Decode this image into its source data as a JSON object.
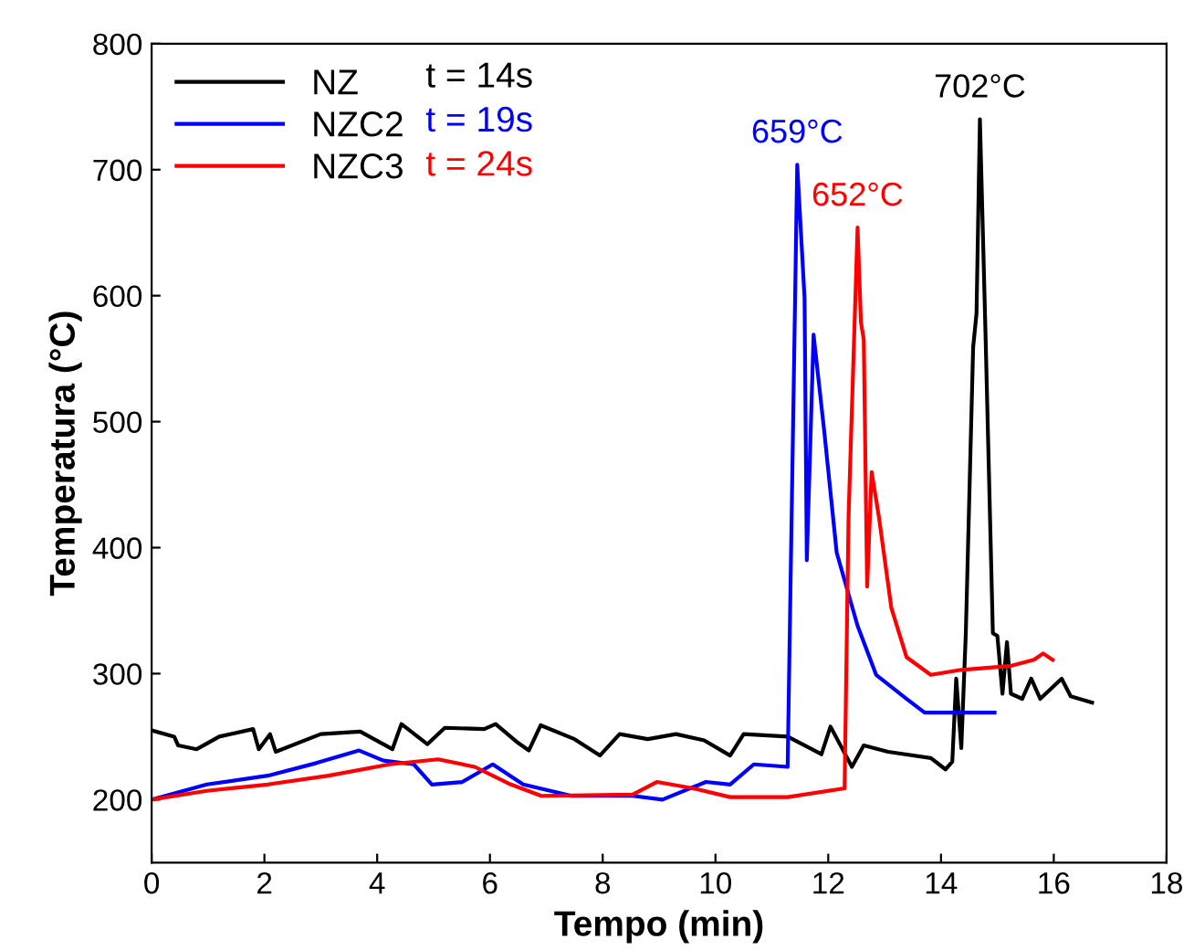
{
  "chart_data": {
    "type": "line",
    "xlabel": "Tempo (min)",
    "ylabel": "Temperatura (°C)",
    "xlim": [
      0,
      18
    ],
    "ylim": [
      150,
      800
    ],
    "xticks": [
      0,
      2,
      4,
      6,
      8,
      10,
      12,
      14,
      16,
      18
    ],
    "yticks": [
      200,
      300,
      400,
      500,
      600,
      700,
      800
    ],
    "grid": false,
    "legend": "top left",
    "marker": "none",
    "line_style": "solid",
    "annotations": [
      "t = 14s",
      "t = 19s",
      "t = 24s",
      "702°C",
      "659°C",
      "652°C"
    ],
    "series": [
      {
        "name": "NZ",
        "color": "#000000",
        "x": [
          0,
          0.4,
          0.47,
          0.8,
          1.2,
          1.8,
          1.9,
          2.1,
          2.2,
          3.0,
          3.7,
          4.27,
          4.43,
          4.89,
          5.2,
          5.9,
          6.1,
          6.5,
          6.69,
          6.9,
          7.5,
          7.95,
          8.3,
          8.8,
          9.3,
          9.8,
          10.26,
          10.5,
          11.28,
          11.88,
          12.04,
          12.42,
          12.63,
          13.06,
          13.82,
          14.08,
          14.2,
          14.27,
          14.36,
          14.44,
          14.57,
          14.63,
          14.69,
          14.79,
          14.92,
          15.0,
          15.09,
          15.17,
          15.24,
          15.44,
          15.6,
          15.76,
          16.14,
          16.3,
          16.68
        ],
        "values": [
          255,
          250,
          243,
          240,
          250,
          256,
          240,
          252,
          238,
          252,
          254,
          240,
          260,
          244,
          257,
          256,
          260,
          245,
          239,
          259,
          248,
          235,
          252,
          248,
          252,
          247,
          235,
          252,
          250,
          236,
          258,
          226,
          243,
          238,
          233,
          224,
          230,
          296,
          241,
          332,
          559,
          586,
          740,
          569,
          332,
          330,
          284,
          325,
          284,
          280,
          296,
          280,
          296,
          282,
          277
        ]
      },
      {
        "name": "NZC2",
        "color": "#0000ff",
        "x": [
          0,
          0.98,
          2.06,
          2.92,
          3.68,
          4.11,
          4.65,
          4.97,
          5.51,
          6.05,
          6.59,
          7.45,
          8.53,
          9.06,
          9.83,
          10.26,
          10.68,
          11.28,
          11.45,
          11.58,
          11.62,
          11.74,
          11.93,
          12.15,
          12.52,
          12.85,
          13.39,
          13.71,
          14.95
        ],
        "values": [
          200,
          212,
          219,
          229,
          239,
          231,
          228,
          212,
          214,
          228,
          212,
          203,
          203,
          200,
          214,
          212,
          228,
          226,
          704,
          598,
          390,
          569,
          492,
          396,
          338,
          299,
          280,
          269,
          269
        ]
      },
      {
        "name": "NZC3",
        "color": "#ff0000",
        "x": [
          0,
          0.98,
          2.06,
          3.14,
          4.22,
          5.08,
          5.73,
          6.37,
          6.91,
          8.53,
          8.96,
          9.6,
          10.26,
          11.28,
          12.29,
          12.36,
          12.52,
          12.58,
          12.63,
          12.69,
          12.77,
          12.9,
          13.12,
          13.39,
          13.82,
          14.36,
          15.22,
          15.65,
          15.81,
          15.98
        ],
        "values": [
          200,
          207,
          212,
          219,
          228,
          232,
          226,
          212,
          203,
          204,
          214,
          209,
          202,
          202,
          209,
          424,
          654,
          579,
          565,
          369,
          460,
          424,
          352,
          313,
          299,
          303,
          306,
          311,
          316,
          311
        ]
      }
    ]
  }
}
